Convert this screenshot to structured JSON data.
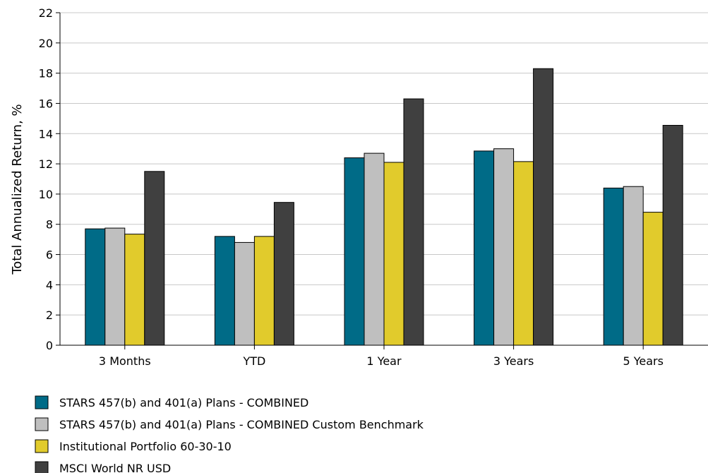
{
  "chart_data": {
    "type": "bar",
    "title": "",
    "xlabel": "",
    "ylabel": "Total Annualized Return, %",
    "ylim": [
      0,
      22
    ],
    "yticks": [
      0,
      2,
      4,
      6,
      8,
      10,
      12,
      14,
      16,
      18,
      20,
      22
    ],
    "grid": true,
    "legend_position": "bottom-left",
    "categories": [
      "3 Months",
      "YTD",
      "1 Year",
      "3 Years",
      "5 Years"
    ],
    "series": [
      {
        "name": "STARS 457(b) and 401(a) Plans - COMBINED",
        "color": "#006b87",
        "values": [
          7.7,
          7.2,
          12.4,
          12.85,
          10.4
        ]
      },
      {
        "name": "STARS 457(b) and 401(a) Plans - COMBINED Custom Benchmark",
        "color": "#bfbfbf",
        "values": [
          7.75,
          6.8,
          12.7,
          13.0,
          10.5
        ]
      },
      {
        "name": "Institutional Portfolio 60-30-10",
        "color": "#e1cb2c",
        "values": [
          7.35,
          7.2,
          12.1,
          12.15,
          8.8
        ]
      },
      {
        "name": "MSCI World NR USD",
        "color": "#404040",
        "values": [
          11.5,
          9.45,
          16.3,
          18.3,
          14.55
        ]
      }
    ]
  }
}
